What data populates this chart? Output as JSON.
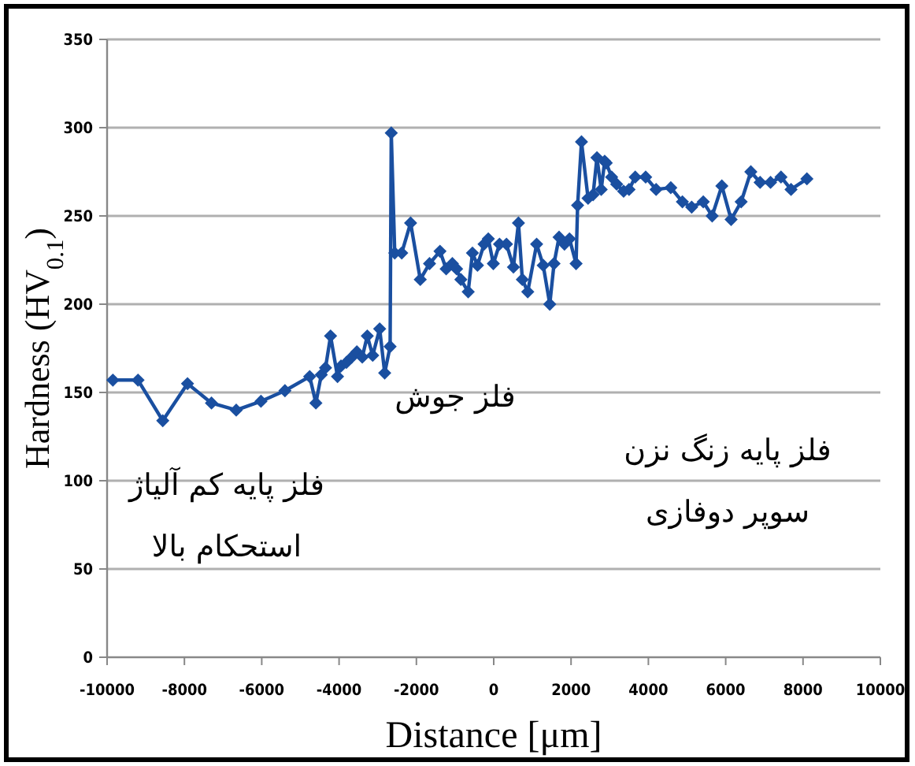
{
  "chart_data": {
    "type": "line",
    "xlabel": "Distance [μm]",
    "ylabel": "Hardness (HV$_{0.1}$)",
    "xlim": [
      -10000,
      10000
    ],
    "xticks": [
      -10000,
      -8000,
      -6000,
      -4000,
      -2000,
      0,
      2000,
      4000,
      6000,
      8000,
      10000
    ],
    "ylim": [
      0,
      350
    ],
    "yticks": [
      0,
      50,
      100,
      150,
      200,
      250,
      300,
      350
    ],
    "grid": "y",
    "marker": "diamond",
    "line_style": "solid",
    "series": [
      {
        "color": "#1a4fa0",
        "x": [
          -9850,
          -9200,
          -8560,
          -7920,
          -7300,
          -6660,
          -6020,
          -5400,
          -4760,
          -4600,
          -4460,
          -4350,
          -4220,
          -4040,
          -3950,
          -3810,
          -3670,
          -3540,
          -3400,
          -3270,
          -3130,
          -2950,
          -2820,
          -2680,
          -2650,
          -2560,
          -2380,
          -2150,
          -1900,
          -1660,
          -1390,
          -1230,
          -1070,
          -960,
          -850,
          -660,
          -550,
          -420,
          -250,
          -140,
          -10,
          150,
          330,
          510,
          640,
          740,
          880,
          1110,
          1280,
          1450,
          1560,
          1690,
          1830,
          1960,
          2130,
          2170,
          2270,
          2440,
          2570,
          2670,
          2780,
          2870,
          2910,
          3050,
          3180,
          3360,
          3500,
          3660,
          3930,
          4200,
          4580,
          4880,
          5120,
          5420,
          5650,
          5900,
          6140,
          6400,
          6650,
          6890,
          7160,
          7430,
          7690,
          8100
        ],
        "values": [
          157,
          157,
          134,
          155,
          144,
          140,
          145,
          151,
          159,
          144,
          160,
          164,
          182,
          159,
          165,
          167,
          170,
          173,
          170,
          182,
          171,
          186,
          161,
          176,
          297,
          229,
          229,
          246,
          214,
          223,
          230,
          220,
          223,
          220,
          214,
          207,
          229,
          222,
          234,
          237,
          223,
          234,
          234,
          221,
          246,
          214,
          207,
          234,
          222,
          200,
          223,
          238,
          234,
          237,
          223,
          256,
          292,
          260,
          262,
          283,
          265,
          281,
          280,
          272,
          268,
          264,
          265,
          272,
          272,
          265,
          266,
          258,
          255,
          258,
          250,
          267,
          248,
          258,
          275,
          269,
          269,
          272,
          265,
          271
        ]
      }
    ],
    "annotations": [
      "فلز جوش",
      "فلز پایه کم آلیاژ\nاستحکام بالا",
      "فلز پایه زنگ نزن\nسوپر دوفازی"
    ]
  }
}
